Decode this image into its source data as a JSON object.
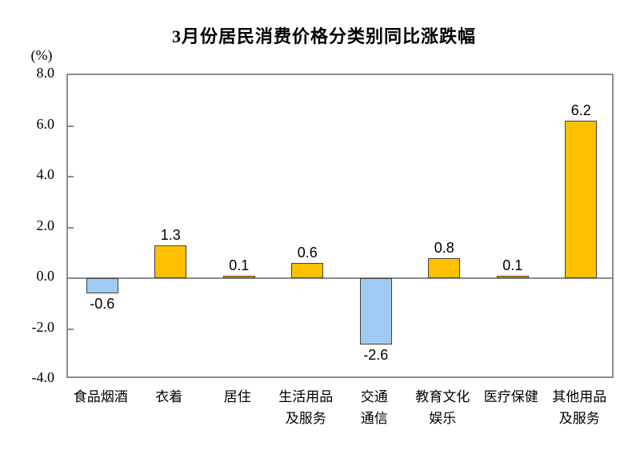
{
  "chart_data": {
    "type": "bar",
    "title": "3月份居民消费价格分类别同比涨跌幅",
    "unit_label": "(%)",
    "categories": [
      "食品烟酒",
      "衣着",
      "居住",
      "生活用品及服务",
      "交通通信",
      "教育文化娱乐",
      "医疗保健",
      "其他用品及服务"
    ],
    "category_label_lines": [
      [
        "食品烟酒"
      ],
      [
        "衣着"
      ],
      [
        "居住"
      ],
      [
        "生活用品",
        "及服务"
      ],
      [
        "交通",
        "通信"
      ],
      [
        "教育文化",
        "娱乐"
      ],
      [
        "医疗保健"
      ],
      [
        "其他用品",
        "及服务"
      ]
    ],
    "values": [
      -0.6,
      1.3,
      0.1,
      0.6,
      -2.6,
      0.8,
      0.1,
      6.2
    ],
    "data_labels": [
      "-0.6",
      "1.3",
      "0.1",
      "0.6",
      "-2.6",
      "0.8",
      "0.1",
      "6.2"
    ],
    "xlabel": "",
    "ylabel": "(%)",
    "ylim": [
      -4.0,
      8.0
    ],
    "ytick_interval": 2.0,
    "ytick_values": [
      8,
      6,
      4,
      2,
      0,
      -2,
      -4
    ],
    "ytick_labels": [
      "8.0",
      "6.0",
      "4.0",
      "2.0",
      "0.0",
      "-2.0",
      "-4.0"
    ],
    "inner_tick_values": [
      6,
      4,
      2,
      -2
    ],
    "grid": "off",
    "legend": "none",
    "colors": {
      "positive_fill": "#FFC000",
      "negative_fill": "#9FCBF3",
      "bar_border": "#404040",
      "axis_line": "#8C8C8C",
      "text": "#000000",
      "background": "#FFFFFF"
    }
  }
}
